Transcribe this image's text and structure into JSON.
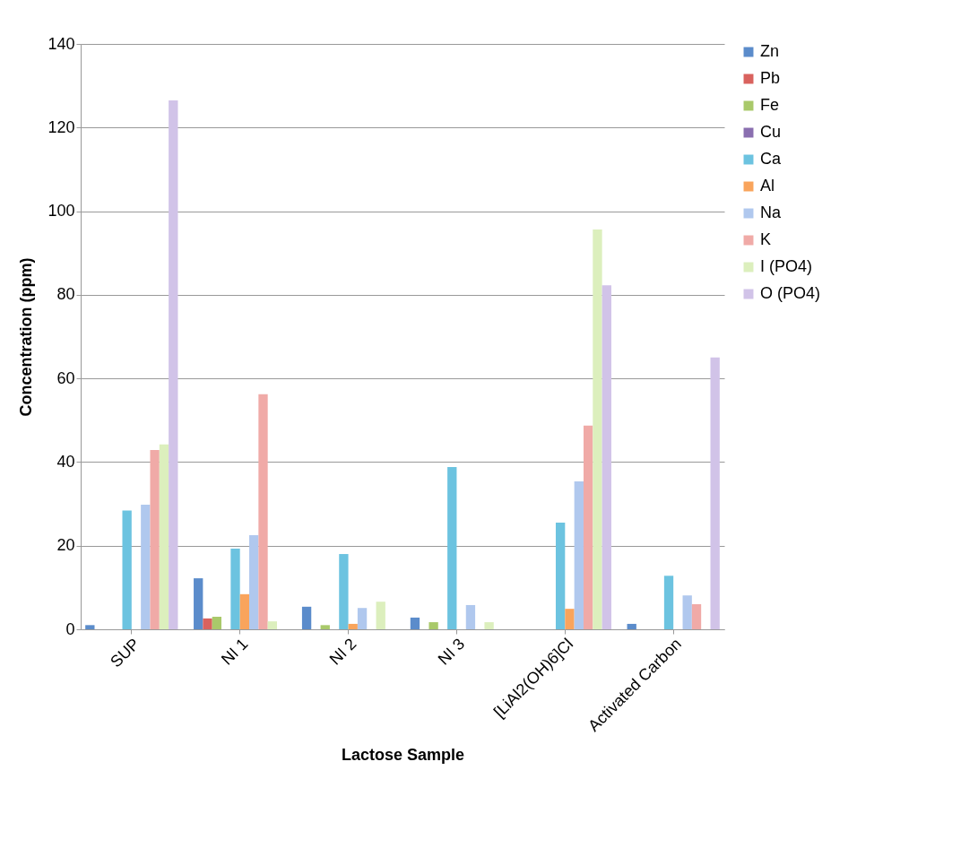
{
  "chart_data": {
    "type": "bar",
    "xlabel": "Lactose Sample",
    "ylabel": "Concentration (ppm)",
    "categories": [
      "SUP",
      "NI 1",
      "NI 2",
      "NI 3",
      "[LiAl2(OH)6]Cl",
      "Activated Carbon"
    ],
    "series": [
      {
        "name": "Zn",
        "color": "#5b8ccb",
        "values": [
          1.0,
          12.2,
          5.4,
          2.8,
          null,
          1.3
        ]
      },
      {
        "name": "Pb",
        "color": "#d9625e",
        "values": [
          null,
          2.6,
          null,
          null,
          null,
          null
        ]
      },
      {
        "name": "Fe",
        "color": "#a9c96a",
        "values": [
          null,
          3.0,
          1.0,
          1.7,
          null,
          null
        ]
      },
      {
        "name": "Cu",
        "color": "#8a6fb0",
        "values": [
          null,
          null,
          null,
          null,
          null,
          null
        ]
      },
      {
        "name": "Ca",
        "color": "#6cc3e0",
        "values": [
          28.4,
          19.3,
          18.0,
          38.8,
          25.5,
          12.8
        ]
      },
      {
        "name": "Al",
        "color": "#f9a45c",
        "values": [
          null,
          8.4,
          1.3,
          null,
          4.9,
          null
        ]
      },
      {
        "name": "Na",
        "color": "#b0c8ee",
        "values": [
          29.8,
          22.5,
          5.1,
          5.8,
          35.4,
          8.1
        ]
      },
      {
        "name": "K",
        "color": "#f0aaa7",
        "values": [
          42.9,
          56.2,
          null,
          null,
          48.7,
          6.0
        ]
      },
      {
        "name": "I (PO4)",
        "color": "#dcefbd",
        "values": [
          44.2,
          1.9,
          6.6,
          1.7,
          95.6,
          null
        ]
      },
      {
        "name": "O (PO4)",
        "color": "#d1c3e8",
        "values": [
          126.5,
          null,
          null,
          null,
          82.3,
          65.0
        ]
      }
    ],
    "ylim": [
      0,
      140
    ],
    "yticks": [
      0,
      20,
      40,
      60,
      80,
      100,
      120,
      140
    ],
    "grid": "y",
    "legend": "right"
  }
}
